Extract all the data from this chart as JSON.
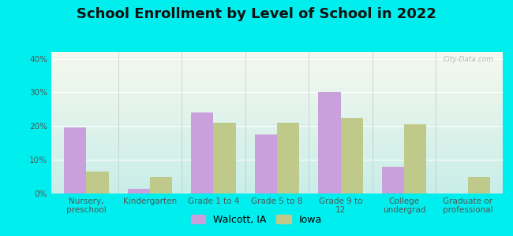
{
  "title": "School Enrollment by Level of School in 2022",
  "categories": [
    "Nursery,\npreschool",
    "Kindergarten",
    "Grade 1 to 4",
    "Grade 5 to 8",
    "Grade 9 to\n12",
    "College\nundergrad",
    "Graduate or\nprofessional"
  ],
  "walcott": [
    19.5,
    1.5,
    24.0,
    17.5,
    30.0,
    8.0,
    0.0
  ],
  "iowa": [
    6.5,
    5.0,
    21.0,
    21.0,
    22.5,
    20.5,
    5.0
  ],
  "walcott_color": "#c9a0dc",
  "iowa_color": "#bfc98a",
  "background_outer": "#00EEEE",
  "background_inner_top": "#f5f8ee",
  "background_inner_bottom": "#c8ede8",
  "ylim": [
    0,
    42
  ],
  "yticks": [
    0,
    10,
    20,
    30,
    40
  ],
  "ytick_labels": [
    "0%",
    "10%",
    "20%",
    "30%",
    "40%"
  ],
  "legend_labels": [
    "Walcott, IA",
    "Iowa"
  ],
  "bar_width": 0.35,
  "title_fontsize": 13,
  "tick_fontsize": 7.5,
  "legend_fontsize": 9,
  "watermark": "City-Data.com"
}
